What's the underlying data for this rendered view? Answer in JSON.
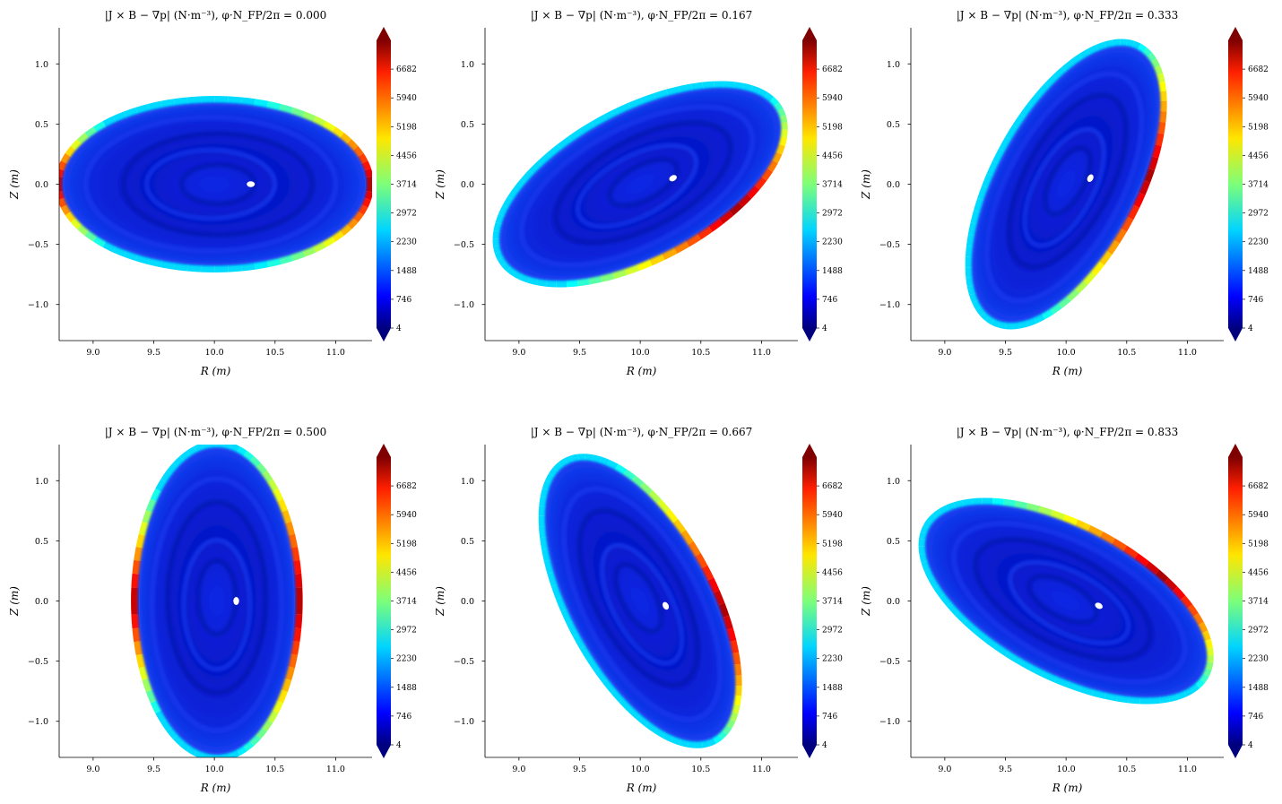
{
  "figure": {
    "colors": {
      "colormap": "jet",
      "background": "#ffffff",
      "axis": "#000000"
    }
  },
  "chart_data": [
    {
      "type": "heatmap",
      "title": "|J × B − ∇p| (N·m⁻³), φ·N_FP/2π = 0.000",
      "xlabel": "R (m)",
      "ylabel": "Z (m)",
      "xticks": [
        "9.0",
        "9.5",
        "10.0",
        "10.5",
        "11.0"
      ],
      "yticks": [
        "−1.0",
        "−0.5",
        "0.0",
        "0.5",
        "1.0"
      ],
      "xlim": [
        8.72,
        11.3
      ],
      "ylim": [
        -1.3,
        1.3
      ],
      "colorbar_ticks": [
        "4",
        "746",
        "1488",
        "2230",
        "2972",
        "3714",
        "4456",
        "5198",
        "5940",
        "6682"
      ],
      "colorbar_range": [
        4,
        7424
      ],
      "cross_section": {
        "center_R": 10.0,
        "center_Z": 0.0,
        "semi_axis_R": 1.28,
        "semi_axis_Z": 0.7,
        "tilt_deg": 0
      },
      "magnetic_axis": {
        "R": 10.3,
        "Z": 0.0
      },
      "edge_max_side": "outer"
    },
    {
      "type": "heatmap",
      "title": "|J × B − ∇p| (N·m⁻³), φ·N_FP/2π = 0.167",
      "xlabel": "R (m)",
      "ylabel": "Z (m)",
      "xticks": [
        "9.0",
        "9.5",
        "10.0",
        "10.5",
        "11.0"
      ],
      "yticks": [
        "−1.0",
        "−0.5",
        "0.0",
        "0.5",
        "1.0"
      ],
      "xlim": [
        8.72,
        11.3
      ],
      "ylim": [
        -1.3,
        1.3
      ],
      "colorbar_ticks": [
        "4",
        "746",
        "1488",
        "2230",
        "2972",
        "3714",
        "4456",
        "5198",
        "5940",
        "6682"
      ],
      "colorbar_range": [
        4,
        7424
      ],
      "cross_section": {
        "center_R": 10.0,
        "center_Z": 0.0,
        "semi_axis_R": 1.3,
        "semi_axis_Z": 0.62,
        "tilt_deg": 28
      },
      "magnetic_axis": {
        "R": 10.27,
        "Z": 0.05
      },
      "edge_max_side": "upper"
    },
    {
      "type": "heatmap",
      "title": "|J × B − ∇p| (N·m⁻³), φ·N_FP/2π = 0.333",
      "xlabel": "R (m)",
      "ylabel": "Z (m)",
      "xticks": [
        "9.0",
        "9.5",
        "10.0",
        "10.5",
        "11.0"
      ],
      "yticks": [
        "−1.0",
        "−0.5",
        "0.0",
        "0.5",
        "1.0"
      ],
      "xlim": [
        8.72,
        11.3
      ],
      "ylim": [
        -1.3,
        1.3
      ],
      "colorbar_ticks": [
        "4",
        "746",
        "1488",
        "2230",
        "2972",
        "3714",
        "4456",
        "5198",
        "5940",
        "6682"
      ],
      "colorbar_range": [
        4,
        7424
      ],
      "cross_section": {
        "center_R": 10.0,
        "center_Z": 0.0,
        "semi_axis_R": 1.28,
        "semi_axis_Z": 0.6,
        "tilt_deg": 62
      },
      "magnetic_axis": {
        "R": 10.2,
        "Z": 0.05
      },
      "edge_max_side": "upper-left"
    },
    {
      "type": "heatmap",
      "title": "|J × B − ∇p| (N·m⁻³), φ·N_FP/2π = 0.500",
      "xlabel": "R (m)",
      "ylabel": "Z (m)",
      "xticks": [
        "9.0",
        "9.5",
        "10.0",
        "10.5",
        "11.0"
      ],
      "yticks": [
        "−1.0",
        "−0.5",
        "0.0",
        "0.5",
        "1.0"
      ],
      "xlim": [
        8.72,
        11.3
      ],
      "ylim": [
        -1.3,
        1.3
      ],
      "colorbar_ticks": [
        "4",
        "746",
        "1488",
        "2230",
        "2972",
        "3714",
        "4456",
        "5198",
        "5940",
        "6682"
      ],
      "colorbar_range": [
        4,
        7424
      ],
      "cross_section": {
        "center_R": 10.02,
        "center_Z": 0.0,
        "semi_axis_R": 1.29,
        "semi_axis_Z": 0.68,
        "tilt_deg": 90
      },
      "magnetic_axis": {
        "R": 10.18,
        "Z": 0.0
      },
      "edge_max_side": "left"
    },
    {
      "type": "heatmap",
      "title": "|J × B − ∇p| (N·m⁻³), φ·N_FP/2π = 0.667",
      "xlabel": "R (m)",
      "ylabel": "Z (m)",
      "xticks": [
        "9.0",
        "9.5",
        "10.0",
        "10.5",
        "11.0"
      ],
      "yticks": [
        "−1.0",
        "−0.5",
        "0.0",
        "0.5",
        "1.0"
      ],
      "xlim": [
        8.72,
        11.3
      ],
      "ylim": [
        -1.3,
        1.3
      ],
      "colorbar_ticks": [
        "4",
        "746",
        "1488",
        "2230",
        "2972",
        "3714",
        "4456",
        "5198",
        "5940",
        "6682"
      ],
      "colorbar_range": [
        4,
        7424
      ],
      "cross_section": {
        "center_R": 10.0,
        "center_Z": 0.0,
        "semi_axis_R": 1.3,
        "semi_axis_Z": 0.6,
        "tilt_deg": 118
      },
      "magnetic_axis": {
        "R": 10.21,
        "Z": -0.04
      },
      "edge_max_side": "lower-left"
    },
    {
      "type": "heatmap",
      "title": "|J × B − ∇p| (N·m⁻³), φ·N_FP/2π = 0.833",
      "xlabel": "R (m)",
      "ylabel": "Z (m)",
      "xticks": [
        "9.0",
        "9.5",
        "10.0",
        "10.5",
        "11.0"
      ],
      "yticks": [
        "−1.0",
        "−0.5",
        "0.0",
        "0.5",
        "1.0"
      ],
      "xlim": [
        8.72,
        11.3
      ],
      "ylim": [
        -1.3,
        1.3
      ],
      "colorbar_ticks": [
        "4",
        "746",
        "1488",
        "2230",
        "2972",
        "3714",
        "4456",
        "5198",
        "5940",
        "6682"
      ],
      "colorbar_range": [
        4,
        7424
      ],
      "cross_section": {
        "center_R": 10.0,
        "center_Z": 0.0,
        "semi_axis_R": 1.3,
        "semi_axis_Z": 0.62,
        "tilt_deg": 152
      },
      "magnetic_axis": {
        "R": 10.27,
        "Z": -0.04
      },
      "edge_max_side": "lower"
    }
  ]
}
